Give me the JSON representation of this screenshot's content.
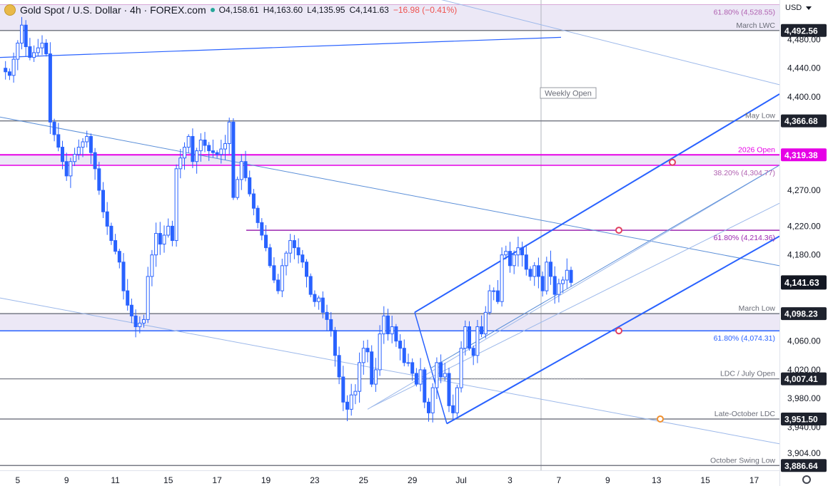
{
  "header": {
    "title": "Gold Spot / U.S. Dollar · 4h · FOREX.com",
    "open": "O4,158.61",
    "high": "H4,163.60",
    "low": "L4,135.95",
    "close": "C4,141.63",
    "change": "−16.98 (−0.41%)",
    "currency": "USD"
  },
  "colors": {
    "candle": "#2962ff",
    "magenta": "#e600e6",
    "purple_line": "#9c27b0",
    "zone_fill": "#ece8f6",
    "level_line": "#787b86",
    "channel": "#2962ff",
    "channel_light": "#9cb8ea",
    "last_price_bg": "#131722",
    "marker_red": "#e04060",
    "marker_orange": "#f09030"
  },
  "chart_data": {
    "type": "candlestick",
    "ylim": [
      3880,
      4535
    ],
    "y_ticks": [
      3904,
      3940,
      3980,
      4020,
      4060,
      4140,
      4180,
      4220,
      4270,
      4400,
      4440,
      4480
    ],
    "y_tick_labels": [
      "3,904.00",
      "3,940.00",
      "3,980.00",
      "4,020.00",
      "4,060.00",
      "4,140.00",
      "4,180.00",
      "4,220.00",
      "4,270.00",
      "4,400.00",
      "4,440.00",
      "4,480.00"
    ],
    "x_tick_labels": [
      {
        "bar": 4,
        "label": "5"
      },
      {
        "bar": 16,
        "label": "9"
      },
      {
        "bar": 28,
        "label": "11"
      },
      {
        "bar": 41,
        "label": "15"
      },
      {
        "bar": 53,
        "label": "17"
      },
      {
        "bar": 65,
        "label": "19"
      },
      {
        "bar": 77,
        "label": "23"
      },
      {
        "bar": 89,
        "label": "25"
      },
      {
        "bar": 101,
        "label": "29"
      },
      {
        "bar": 113,
        "label": "Jul"
      },
      {
        "bar": 125,
        "label": "3"
      },
      {
        "bar": 137,
        "label": "7"
      },
      {
        "bar": 149,
        "label": "9"
      },
      {
        "bar": 161,
        "label": "13"
      },
      {
        "bar": 173,
        "label": "15"
      },
      {
        "bar": 185,
        "label": "17"
      }
    ],
    "waypoints": [
      [
        0,
        4440
      ],
      [
        2,
        4430
      ],
      [
        4,
        4475
      ],
      [
        5,
        4500
      ],
      [
        6,
        4470
      ],
      [
        7,
        4455
      ],
      [
        10,
        4475
      ],
      [
        11,
        4460
      ],
      [
        12,
        4365
      ],
      [
        14,
        4330
      ],
      [
        16,
        4290
      ],
      [
        17,
        4310
      ],
      [
        19,
        4330
      ],
      [
        21,
        4345
      ],
      [
        23,
        4300
      ],
      [
        24,
        4270
      ],
      [
        25,
        4240
      ],
      [
        27,
        4200
      ],
      [
        29,
        4170
      ],
      [
        30,
        4130
      ],
      [
        31,
        4110
      ],
      [
        33,
        4080
      ],
      [
        35,
        4090
      ],
      [
        36,
        4150
      ],
      [
        37,
        4180
      ],
      [
        38,
        4210
      ],
      [
        39,
        4195
      ],
      [
        41,
        4220
      ],
      [
        42,
        4200
      ],
      [
        43,
        4300
      ],
      [
        45,
        4330
      ],
      [
        46,
        4345
      ],
      [
        47,
        4310
      ],
      [
        49,
        4340
      ],
      [
        51,
        4325
      ],
      [
        53,
        4320
      ],
      [
        55,
        4335
      ],
      [
        56,
        4365
      ],
      [
        57,
        4260
      ],
      [
        59,
        4310
      ],
      [
        61,
        4265
      ],
      [
        63,
        4225
      ],
      [
        65,
        4190
      ],
      [
        66,
        4165
      ],
      [
        67,
        4145
      ],
      [
        68,
        4130
      ],
      [
        69,
        4165
      ],
      [
        71,
        4200
      ],
      [
        72,
        4190
      ],
      [
        74,
        4170
      ],
      [
        75,
        4150
      ],
      [
        76,
        4125
      ],
      [
        77,
        4115
      ],
      [
        78,
        4120
      ],
      [
        79,
        4100
      ],
      [
        80,
        4090
      ],
      [
        81,
        4075
      ],
      [
        82,
        4040
      ],
      [
        83,
        4010
      ],
      [
        84,
        3975
      ],
      [
        85,
        3965
      ],
      [
        86,
        3985
      ],
      [
        87,
        3990
      ],
      [
        88,
        4030
      ],
      [
        89,
        4050
      ],
      [
        90,
        4045
      ],
      [
        91,
        4000
      ],
      [
        92,
        4020
      ],
      [
        93,
        4070
      ],
      [
        94,
        4095
      ],
      [
        95,
        4070
      ],
      [
        96,
        4080
      ],
      [
        97,
        4060
      ],
      [
        98,
        4050
      ],
      [
        99,
        4030
      ],
      [
        100,
        4030
      ],
      [
        102,
        4000
      ],
      [
        103,
        4020
      ],
      [
        104,
        3975
      ],
      [
        105,
        3960
      ],
      [
        106,
        3995
      ],
      [
        107,
        4030
      ],
      [
        108,
        4010
      ],
      [
        109,
        4015
      ],
      [
        110,
        3970
      ],
      [
        111,
        3960
      ],
      [
        112,
        3995
      ],
      [
        113,
        4050
      ],
      [
        114,
        4080
      ],
      [
        115,
        4050
      ],
      [
        116,
        4040
      ],
      [
        117,
        4080
      ],
      [
        118,
        4070
      ],
      [
        119,
        4100
      ],
      [
        120,
        4130
      ],
      [
        121,
        4130
      ],
      [
        122,
        4115
      ],
      [
        123,
        4180
      ],
      [
        124,
        4185
      ],
      [
        125,
        4165
      ],
      [
        126,
        4180
      ],
      [
        127,
        4190
      ],
      [
        128,
        4180
      ],
      [
        129,
        4160
      ],
      [
        130,
        4150
      ],
      [
        131,
        4165
      ],
      [
        132,
        4150
      ],
      [
        133,
        4130
      ],
      [
        134,
        4170
      ],
      [
        135,
        4150
      ],
      [
        136,
        4125
      ],
      [
        137,
        4140
      ],
      [
        138,
        4145
      ],
      [
        139,
        4158.61
      ],
      [
        140,
        4141.63
      ]
    ],
    "bar_count": 141,
    "last_bar": {
      "open": 4158.61,
      "high": 4163.6,
      "low": 4135.95,
      "close": 4141.63
    },
    "zones": [
      {
        "from": 4492.56,
        "to": 4528.55
      },
      {
        "from": 4304.77,
        "to": 4319.38
      },
      {
        "from": 4074.31,
        "to": 4098.23
      }
    ],
    "levels": [
      {
        "value": 4528.55,
        "label": "61.80% (4,528.55)",
        "color": "#c06cc0"
      },
      {
        "value": 4492.56,
        "label": "March LWC",
        "badge": "4,492.56"
      },
      {
        "value": 4366.68,
        "label": "May Low",
        "badge": "4,366.68"
      },
      {
        "value": 4319.38,
        "label": "2026 Open",
        "badge": "4,319.38",
        "color": "#e600e6"
      },
      {
        "value": 4304.77,
        "label": "38.20% (4,304.77)",
        "color": "#c06cc0"
      },
      {
        "value": 4214.36,
        "label": "61.80% (4,214.36)",
        "color": "#9c27b0"
      },
      {
        "value": 4098.23,
        "label": "March Low",
        "badge": "4,098.23"
      },
      {
        "value": 4074.31,
        "label": "61.80% (4,074.31)",
        "color": "#2962ff"
      },
      {
        "value": 4007.41,
        "label": "LDC / July Open",
        "badge": "4,007.41"
      },
      {
        "value": 3951.5,
        "label": "Late-October LDC",
        "badge": "3,951.50"
      },
      {
        "value": 3886.64,
        "label": "October Swing Low",
        "badge": "3,886.64"
      }
    ],
    "last_price_label": "4,141.63",
    "annotations": [
      "Weekly Open"
    ]
  }
}
